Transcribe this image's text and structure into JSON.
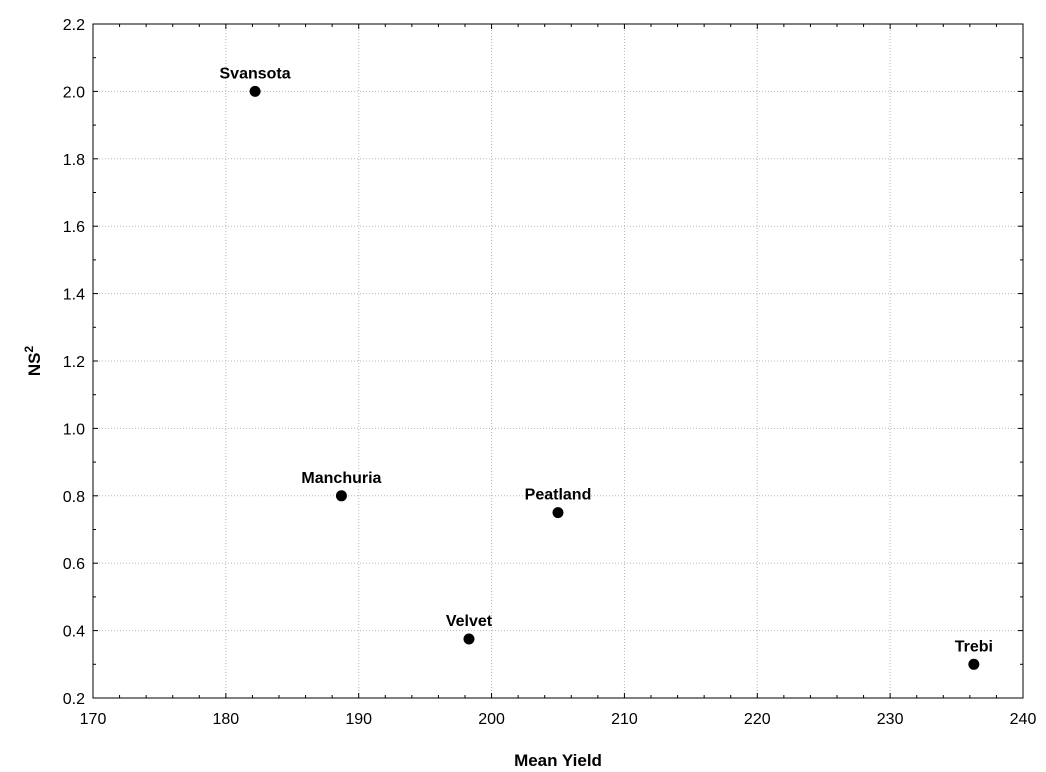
{
  "chart_data": {
    "type": "scatter",
    "xlabel": "Mean Yield",
    "ylabel": "NS",
    "ylabel_superscript": "2",
    "xlim": [
      170,
      240
    ],
    "ylim": [
      0.2,
      2.2
    ],
    "x_ticks": [
      170,
      180,
      190,
      200,
      210,
      220,
      230,
      240
    ],
    "y_ticks": [
      "0.2",
      "0.4",
      "0.6",
      "0.8",
      "1.0",
      "1.2",
      "1.4",
      "1.6",
      "1.8",
      "2.0",
      "2.2"
    ],
    "grid": true,
    "points": [
      {
        "label": "Svansota",
        "x": 182.2,
        "y": 2.0
      },
      {
        "label": "Manchuria",
        "x": 188.7,
        "y": 0.8
      },
      {
        "label": "Peatland",
        "x": 205.0,
        "y": 0.75
      },
      {
        "label": "Velvet",
        "x": 198.3,
        "y": 0.375
      },
      {
        "label": "Trebi",
        "x": 236.3,
        "y": 0.3
      }
    ],
    "marker_color": "#000000"
  }
}
